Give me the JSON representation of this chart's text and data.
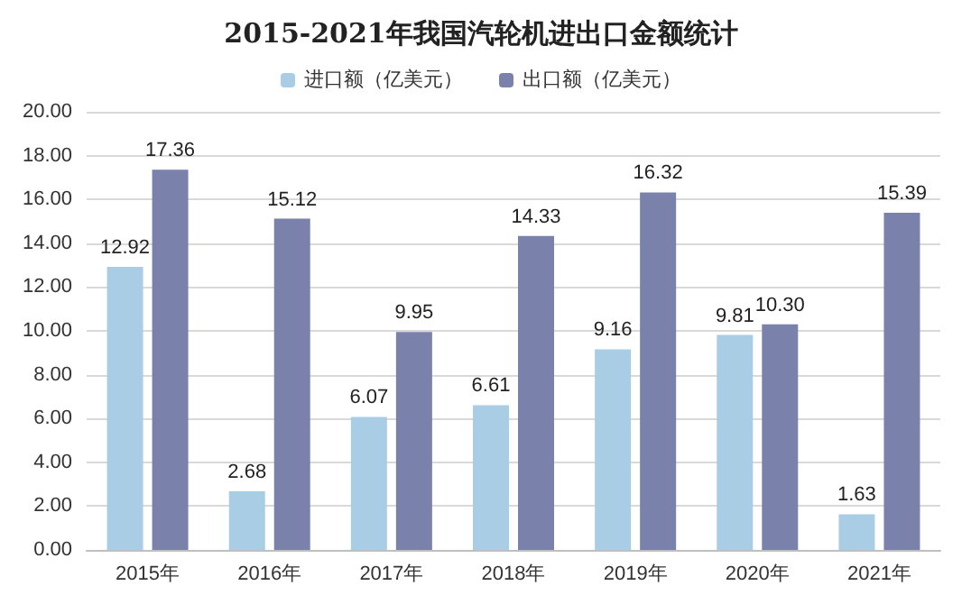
{
  "chart_data": {
    "type": "bar",
    "title": "2015-2021年我国汽轮机进出口金额统计",
    "categories": [
      "2015年",
      "2016年",
      "2017年",
      "2018年",
      "2019年",
      "2020年",
      "2021年"
    ],
    "series": [
      {
        "name": "进口额（亿美元）",
        "color": "#a8cde4",
        "values": [
          12.92,
          2.68,
          6.07,
          6.61,
          9.16,
          9.81,
          1.63
        ],
        "value_labels": [
          "12.92",
          "2.68",
          "6.07",
          "6.61",
          "9.16",
          "9.81",
          "1.63"
        ]
      },
      {
        "name": "出口额（亿美元）",
        "color": "#7a82ac",
        "values": [
          17.36,
          15.12,
          9.95,
          14.33,
          16.32,
          10.3,
          15.39
        ],
        "value_labels": [
          "17.36",
          "15.12",
          "9.95",
          "14.33",
          "16.32",
          "10.30",
          "15.39"
        ]
      }
    ],
    "ylim": [
      0,
      20
    ],
    "yticks": [
      {
        "value": 0,
        "label": "0.00"
      },
      {
        "value": 2,
        "label": "2.00"
      },
      {
        "value": 4,
        "label": "4.00"
      },
      {
        "value": 6,
        "label": "6.00"
      },
      {
        "value": 8,
        "label": "8.00"
      },
      {
        "value": 10,
        "label": "10.00"
      },
      {
        "value": 12,
        "label": "12.00"
      },
      {
        "value": 14,
        "label": "14.00"
      },
      {
        "value": 16,
        "label": "16.00"
      },
      {
        "value": 18,
        "label": "18.00"
      },
      {
        "value": 20,
        "label": "20.00"
      }
    ],
    "grid": "y",
    "legend": "top"
  }
}
